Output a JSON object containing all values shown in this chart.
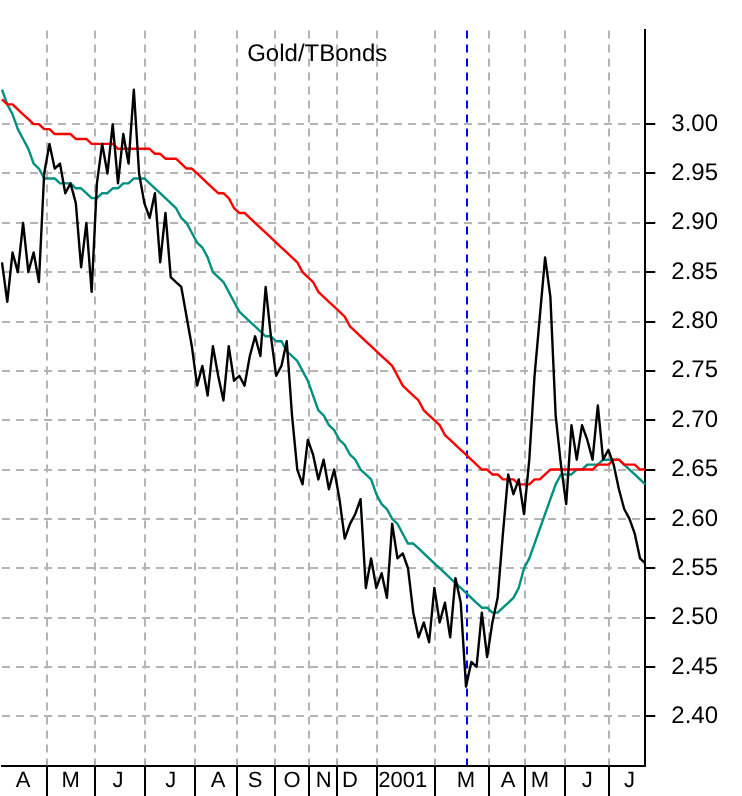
{
  "chart_data": {
    "type": "line",
    "title": "Gold/TBonds",
    "categories": [
      null,
      null,
      null,
      null,
      "A",
      null,
      null,
      null,
      null,
      null,
      null,
      null,
      null,
      "M",
      null,
      null,
      null,
      null,
      null,
      null,
      null,
      null,
      "J",
      null,
      null,
      null,
      null,
      null,
      null,
      null,
      null,
      null,
      "J",
      null,
      null,
      null,
      null,
      null,
      null,
      null,
      null,
      "A",
      null,
      null,
      null,
      null,
      null,
      null,
      "S",
      null,
      null,
      null,
      null,
      null,
      null,
      "O",
      null,
      null,
      null,
      null,
      null,
      "N",
      null,
      null,
      null,
      null,
      "D",
      null,
      null,
      null,
      null,
      null,
      null,
      null,
      null,
      null,
      "2001",
      null,
      null,
      null,
      null,
      null,
      null,
      null,
      null,
      null,
      null,
      null,
      "M",
      null,
      null,
      null,
      null,
      null,
      null,
      null,
      "A",
      null,
      null,
      null,
      null,
      null,
      "M",
      null,
      null,
      null,
      null,
      null,
      null,
      null,
      null,
      "J",
      null,
      null,
      null,
      null,
      null,
      null,
      null,
      "J",
      null,
      null,
      null
    ],
    "ylim": [
      2.35,
      3.095
    ],
    "yticks": [
      {
        "value": 2.4,
        "label": "2.40"
      },
      {
        "value": 2.45,
        "label": "2.45"
      },
      {
        "value": 2.5,
        "label": "2.50"
      },
      {
        "value": 2.55,
        "label": "2.55"
      },
      {
        "value": 2.6,
        "label": "2.60"
      },
      {
        "value": 2.65,
        "label": "2.65"
      },
      {
        "value": 2.7,
        "label": "2.70"
      },
      {
        "value": 2.75,
        "label": "2.75"
      },
      {
        "value": 2.8,
        "label": "2.80"
      },
      {
        "value": 2.85,
        "label": "2.85"
      },
      {
        "value": 2.9,
        "label": "2.90"
      },
      {
        "value": 2.95,
        "label": "2.95"
      },
      {
        "value": 3.0,
        "label": "3.00"
      }
    ],
    "grid": true,
    "marker": "none",
    "line_style": "solid",
    "series": [
      {
        "color": "#000000",
        "values": [
          2.86,
          2.82,
          2.87,
          2.85,
          2.9,
          2.85,
          2.87,
          2.84,
          2.95,
          2.98,
          2.955,
          2.96,
          2.93,
          2.94,
          2.92,
          2.855,
          2.9,
          2.83,
          2.94,
          2.98,
          2.95,
          3.0,
          2.94,
          2.99,
          2.96,
          3.035,
          2.95,
          2.92,
          2.905,
          2.93,
          2.86,
          2.91,
          2.845,
          2.84,
          2.835,
          2.805,
          2.775,
          2.735,
          2.755,
          2.725,
          2.775,
          2.745,
          2.72,
          2.775,
          2.74,
          2.745,
          2.735,
          2.765,
          2.785,
          2.765,
          2.835,
          2.785,
          2.745,
          2.755,
          2.78,
          2.705,
          2.65,
          2.635,
          2.68,
          2.665,
          2.64,
          2.66,
          2.63,
          2.65,
          2.62,
          2.58,
          2.595,
          2.605,
          2.62,
          2.53,
          2.56,
          2.53,
          2.545,
          2.52,
          2.595,
          2.56,
          2.565,
          2.55,
          2.505,
          2.48,
          2.495,
          2.475,
          2.53,
          2.495,
          2.515,
          2.48,
          2.54,
          2.515,
          2.43,
          2.455,
          2.45,
          2.505,
          2.46,
          2.495,
          2.52,
          2.585,
          2.645,
          2.625,
          2.64,
          2.605,
          2.66,
          2.745,
          2.805,
          2.865,
          2.825,
          2.705,
          2.655,
          2.615,
          2.695,
          2.66,
          2.695,
          2.68,
          2.66,
          2.715,
          2.66,
          2.67,
          2.655,
          2.63,
          2.61,
          2.6,
          2.585,
          2.56,
          2.555
        ]
      },
      {
        "color": "#ff0000",
        "values": [
          3.025,
          3.02,
          3.02,
          3.015,
          3.01,
          3.005,
          3.0,
          3.0,
          2.995,
          2.995,
          2.99,
          2.99,
          2.99,
          2.99,
          2.985,
          2.985,
          2.985,
          2.98,
          2.98,
          2.98,
          2.98,
          2.98,
          2.975,
          2.975,
          2.975,
          2.975,
          2.975,
          2.975,
          2.975,
          2.97,
          2.97,
          2.965,
          2.965,
          2.965,
          2.96,
          2.955,
          2.955,
          2.95,
          2.945,
          2.94,
          2.935,
          2.93,
          2.93,
          2.925,
          2.915,
          2.91,
          2.91,
          2.905,
          2.9,
          2.895,
          2.89,
          2.885,
          2.88,
          2.875,
          2.87,
          2.865,
          2.86,
          2.85,
          2.845,
          2.84,
          2.83,
          2.825,
          2.82,
          2.815,
          2.81,
          2.805,
          2.795,
          2.79,
          2.785,
          2.78,
          2.775,
          2.77,
          2.765,
          2.76,
          2.755,
          2.745,
          2.735,
          2.73,
          2.725,
          2.72,
          2.71,
          2.705,
          2.7,
          2.695,
          2.685,
          2.68,
          2.675,
          2.67,
          2.665,
          2.66,
          2.655,
          2.65,
          2.65,
          2.645,
          2.645,
          2.64,
          2.64,
          2.64,
          2.635,
          2.635,
          2.635,
          2.64,
          2.64,
          2.645,
          2.65,
          2.65,
          2.65,
          2.65,
          2.65,
          2.65,
          2.65,
          2.65,
          2.65,
          2.655,
          2.655,
          2.655,
          2.66,
          2.66,
          2.655,
          2.655,
          2.655,
          2.65,
          2.65
        ]
      },
      {
        "color": "#009080",
        "values": [
          3.035,
          3.02,
          3.01,
          2.995,
          2.985,
          2.975,
          2.96,
          2.955,
          2.945,
          2.945,
          2.945,
          2.94,
          2.94,
          2.94,
          2.935,
          2.935,
          2.93,
          2.925,
          2.925,
          2.93,
          2.93,
          2.935,
          2.935,
          2.94,
          2.94,
          2.945,
          2.945,
          2.945,
          2.94,
          2.935,
          2.93,
          2.925,
          2.92,
          2.915,
          2.905,
          2.9,
          2.89,
          2.88,
          2.875,
          2.865,
          2.85,
          2.845,
          2.84,
          2.83,
          2.82,
          2.81,
          2.805,
          2.8,
          2.795,
          2.79,
          2.785,
          2.785,
          2.78,
          2.78,
          2.77,
          2.765,
          2.76,
          2.75,
          2.74,
          2.725,
          2.71,
          2.705,
          2.695,
          2.69,
          2.68,
          2.675,
          2.665,
          2.66,
          2.65,
          2.645,
          2.64,
          2.625,
          2.615,
          2.61,
          2.6,
          2.595,
          2.585,
          2.575,
          2.575,
          2.57,
          2.565,
          2.56,
          2.555,
          2.55,
          2.545,
          2.54,
          2.535,
          2.53,
          2.525,
          2.52,
          2.515,
          2.51,
          2.51,
          2.505,
          2.505,
          2.51,
          2.515,
          2.52,
          2.53,
          2.55,
          2.56,
          2.575,
          2.59,
          2.605,
          2.62,
          2.635,
          2.645,
          2.645,
          2.645,
          2.65,
          2.65,
          2.655,
          2.655,
          2.655,
          2.66,
          2.66,
          2.66,
          2.66,
          2.655,
          2.65,
          2.645,
          2.64,
          2.635
        ]
      }
    ]
  }
}
